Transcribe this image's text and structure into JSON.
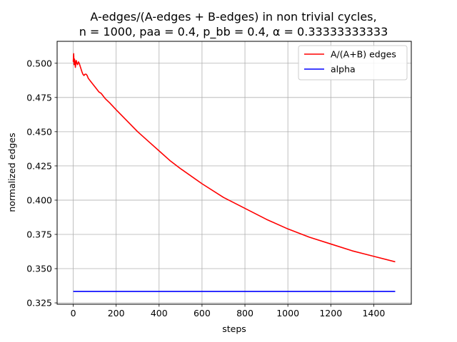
{
  "chart_data": {
    "type": "line",
    "title_lines": [
      "A-edges/(A-edges + B-edges) in non trivial cycles,",
      "n = 1000, paa = 0.4, p_bb = 0.4, α = 0.33333333333"
    ],
    "xlabel": "steps",
    "ylabel": "normalized edges",
    "xlim": [
      -75,
      1575
    ],
    "ylim": [
      0.324,
      0.516
    ],
    "x_ticks": [
      0,
      200,
      400,
      600,
      800,
      1000,
      1200,
      1400
    ],
    "x_tick_labels": [
      "0",
      "200",
      "400",
      "600",
      "800",
      "1000",
      "1200",
      "1400"
    ],
    "y_ticks": [
      0.325,
      0.35,
      0.375,
      0.4,
      0.425,
      0.45,
      0.475,
      0.5
    ],
    "y_tick_labels": [
      "0.325",
      "0.350",
      "0.375",
      "0.400",
      "0.425",
      "0.450",
      "0.475",
      "0.500"
    ],
    "grid": true,
    "legend_position": "top-right",
    "series": [
      {
        "name": "A/(A+B) edges",
        "color": "#ff0000",
        "x": [
          0,
          2,
          4,
          6,
          8,
          10,
          12,
          14,
          17,
          20,
          24,
          28,
          32,
          36,
          40,
          45,
          50,
          55,
          60,
          65,
          70,
          75,
          80,
          90,
          100,
          110,
          120,
          130,
          140,
          150,
          170,
          200,
          250,
          300,
          350,
          400,
          450,
          500,
          600,
          700,
          800,
          900,
          1000,
          1100,
          1200,
          1300,
          1400,
          1500
        ],
        "values": [
          0.501,
          0.507,
          0.499,
          0.503,
          0.501,
          0.497,
          0.5,
          0.502,
          0.5,
          0.499,
          0.501,
          0.5,
          0.498,
          0.496,
          0.494,
          0.492,
          0.491,
          0.492,
          0.492,
          0.491,
          0.489,
          0.488,
          0.487,
          0.485,
          0.483,
          0.481,
          0.479,
          0.478,
          0.476,
          0.474,
          0.471,
          0.466,
          0.458,
          0.45,
          0.443,
          0.436,
          0.429,
          0.423,
          0.412,
          0.402,
          0.394,
          0.386,
          0.379,
          0.373,
          0.368,
          0.363,
          0.359,
          0.355
        ]
      },
      {
        "name": "alpha",
        "color": "#0000ff",
        "x": [
          0,
          1500
        ],
        "values": [
          0.333333,
          0.333333
        ]
      }
    ]
  }
}
